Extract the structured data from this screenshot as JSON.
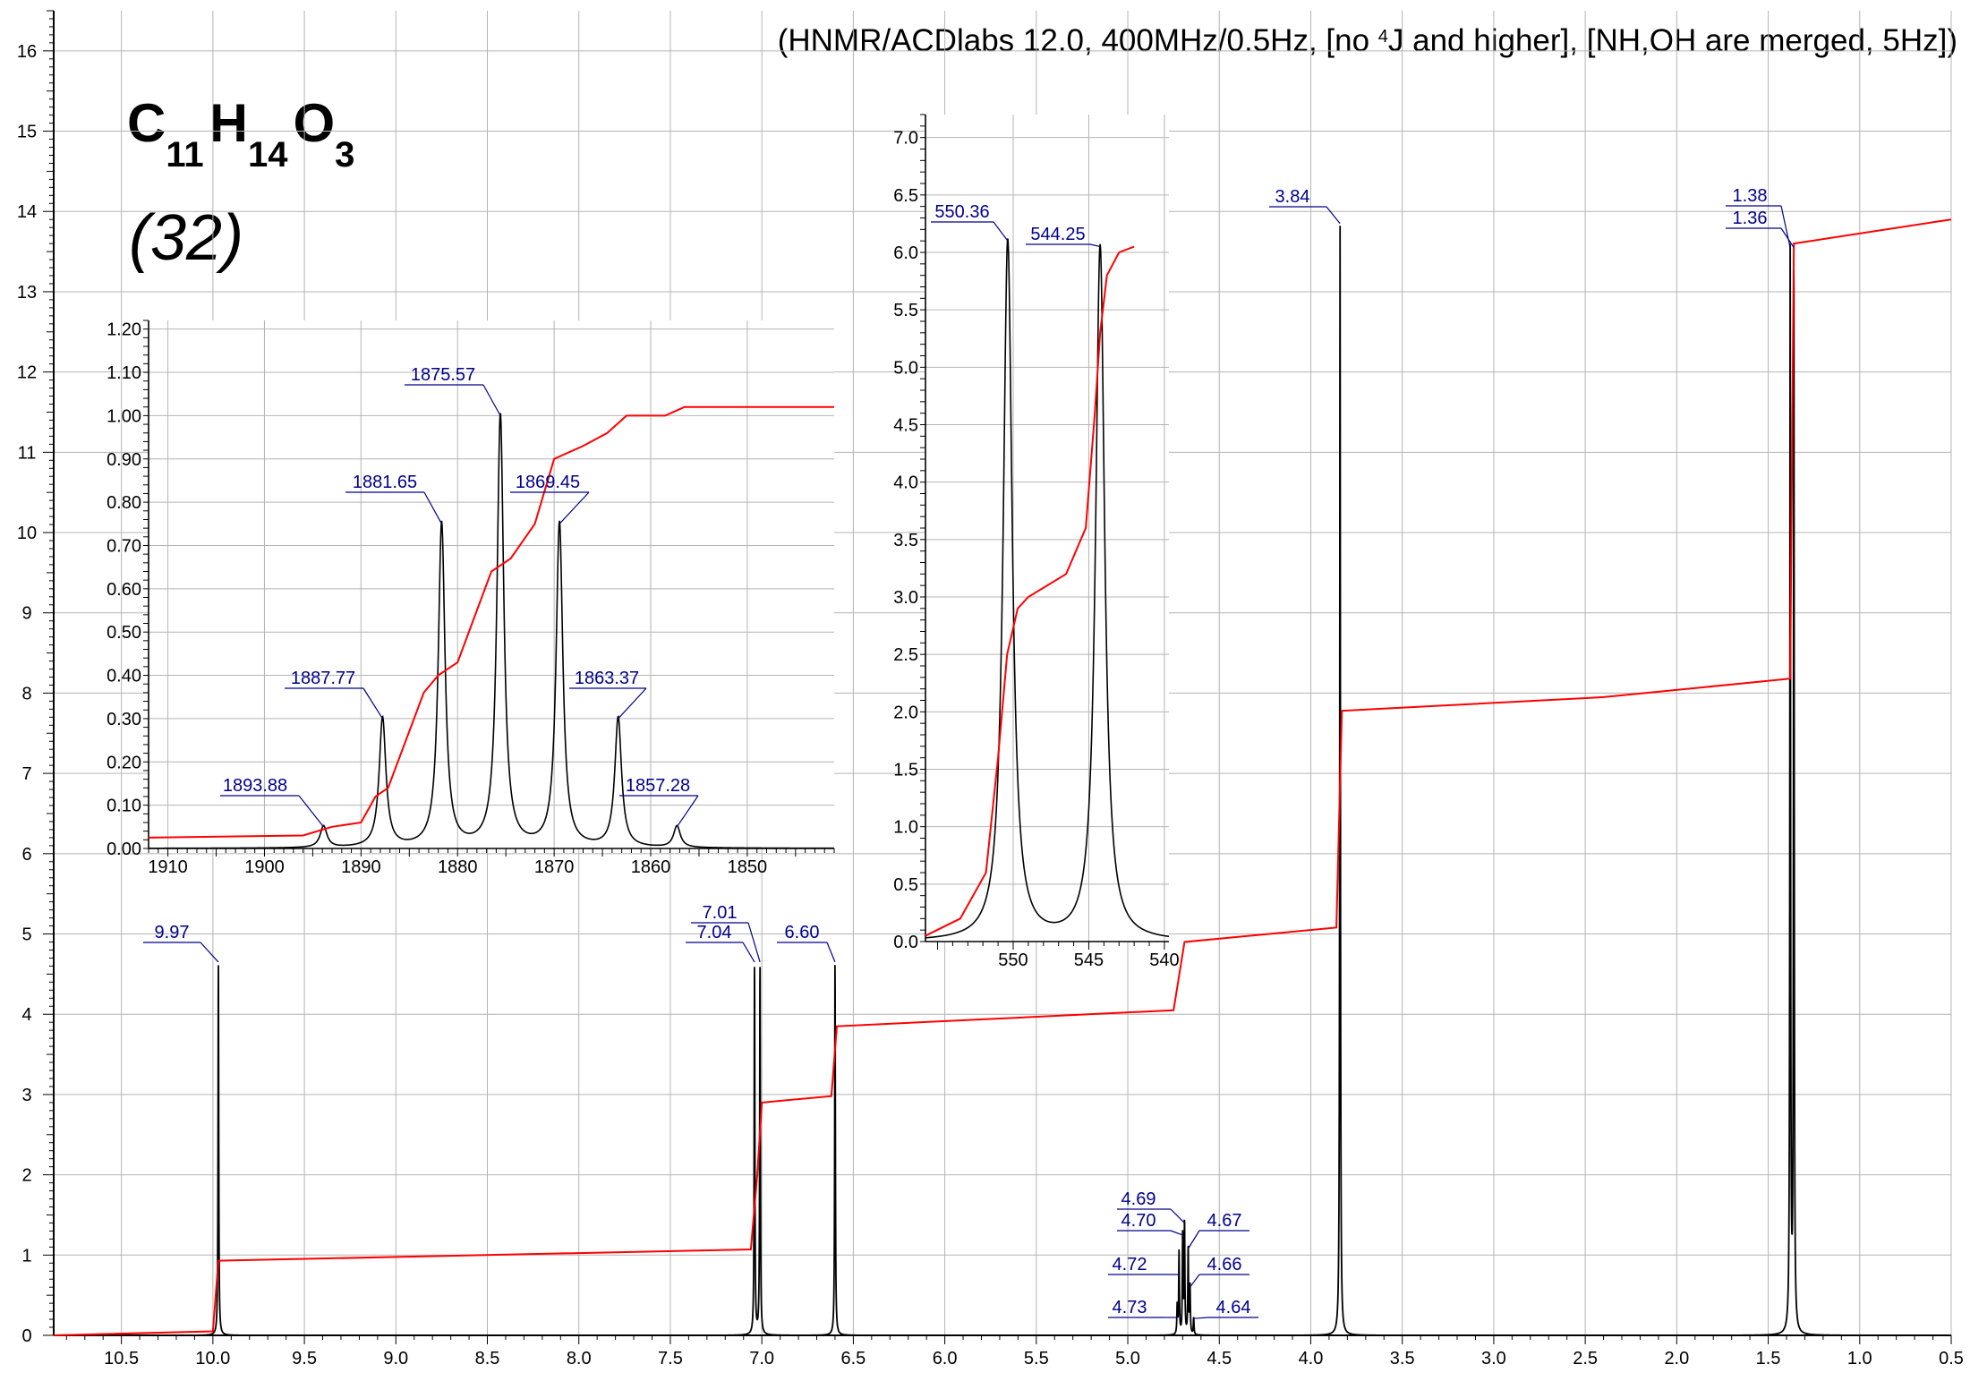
{
  "header": {
    "prefix": "(HNMR/ACDlabs 12.0, 400MHz/0.5Hz, [no ",
    "sup": "4",
    "suffix": "J and higher], [NH,OH are merged, 5Hz])"
  },
  "formula": {
    "c": "C",
    "c_n": "11",
    "h": "H",
    "h_n": "14",
    "o": "O",
    "o_n": "3"
  },
  "compound_label": "(32)",
  "chart_data": [
    {
      "type": "line",
      "name": "main-spectrum",
      "x_unit": "ppm",
      "x_reversed": true,
      "xlim": [
        10.87,
        0.5
      ],
      "ylim": [
        0,
        16.5
      ],
      "x_ticks": [
        "10.5",
        "10.0",
        "9.5",
        "9.0",
        "8.5",
        "8.0",
        "7.5",
        "7.0",
        "6.5",
        "6.0",
        "5.5",
        "5.0",
        "4.5",
        "4.0",
        "3.5",
        "3.0",
        "2.5",
        "2.0",
        "1.5",
        "1.0",
        "0.5"
      ],
      "y_ticks": [
        "0",
        "1",
        "2",
        "3",
        "4",
        "5",
        "6",
        "7",
        "8",
        "9",
        "10",
        "11",
        "12",
        "13",
        "14",
        "15",
        "16"
      ],
      "grid": true,
      "peaks": [
        {
          "x": 9.97,
          "h": 4.65
        },
        {
          "x": 7.04,
          "h": 4.65
        },
        {
          "x": 7.01,
          "h": 4.65
        },
        {
          "x": 6.6,
          "h": 4.65
        },
        {
          "x": 4.73,
          "h": 0.36
        },
        {
          "x": 4.72,
          "h": 1.03
        },
        {
          "x": 4.7,
          "h": 1.25
        },
        {
          "x": 4.69,
          "h": 1.4
        },
        {
          "x": 4.67,
          "h": 1.08
        },
        {
          "x": 4.66,
          "h": 0.6
        },
        {
          "x": 4.64,
          "h": 0.21
        },
        {
          "x": 3.84,
          "h": 13.85
        },
        {
          "x": 1.38,
          "h": 13.55
        },
        {
          "x": 1.36,
          "h": 13.55
        }
      ],
      "peak_labels": [
        {
          "text": "9.97",
          "x": 9.97
        },
        {
          "text": "7.04",
          "x": 7.04
        },
        {
          "text": "7.01",
          "x": 7.01
        },
        {
          "text": "6.60",
          "x": 6.6
        },
        {
          "text": "4.73",
          "x": 4.73
        },
        {
          "text": "4.72",
          "x": 4.72
        },
        {
          "text": "4.70",
          "x": 4.7
        },
        {
          "text": "4.69",
          "x": 4.69
        },
        {
          "text": "4.67",
          "x": 4.67
        },
        {
          "text": "4.66",
          "x": 4.66
        },
        {
          "text": "4.64",
          "x": 4.64
        },
        {
          "text": "3.84",
          "x": 3.84
        },
        {
          "text": "1.38",
          "x": 1.38
        },
        {
          "text": "1.36",
          "x": 1.36
        }
      ],
      "integral": [
        [
          10.87,
          0.0
        ],
        [
          10.0,
          0.05
        ],
        [
          9.97,
          0.93
        ],
        [
          7.06,
          1.07
        ],
        [
          7.025,
          2.0
        ],
        [
          7.0,
          2.9
        ],
        [
          6.62,
          2.98
        ],
        [
          6.59,
          3.85
        ],
        [
          4.75,
          4.05
        ],
        [
          4.69,
          4.9
        ],
        [
          3.86,
          5.08
        ],
        [
          3.83,
          7.78
        ],
        [
          2.4,
          7.95
        ],
        [
          1.38,
          8.18
        ],
        [
          1.36,
          13.6
        ],
        [
          0.5,
          13.9
        ]
      ],
      "colors": {
        "spectrum": "#000000",
        "integral": "#ff0000",
        "label": "#00008b",
        "grid": "#b4b4b4"
      }
    },
    {
      "type": "line",
      "name": "inset-1860hz",
      "x_unit": "Hz",
      "x_reversed": true,
      "xlim": [
        1912,
        1841
      ],
      "ylim": [
        0,
        1.22
      ],
      "x_ticks": [
        "1910",
        "1900",
        "1890",
        "1880",
        "1870",
        "1860",
        "1850"
      ],
      "y_ticks": [
        "0.00",
        "0.10",
        "0.20",
        "0.30",
        "0.40",
        "0.50",
        "0.60",
        "0.70",
        "0.80",
        "0.90",
        "1.00",
        "1.10",
        "1.20"
      ],
      "peaks": [
        {
          "x": 1893.88,
          "h": 0.05
        },
        {
          "x": 1887.77,
          "h": 0.3
        },
        {
          "x": 1881.65,
          "h": 0.75
        },
        {
          "x": 1875.57,
          "h": 1.0
        },
        {
          "x": 1869.45,
          "h": 0.75
        },
        {
          "x": 1863.37,
          "h": 0.3
        },
        {
          "x": 1857.28,
          "h": 0.05
        }
      ],
      "peak_labels": [
        {
          "text": "1893.88",
          "x": 1893.88
        },
        {
          "text": "1887.77",
          "x": 1887.77
        },
        {
          "text": "1881.65",
          "x": 1881.65
        },
        {
          "text": "1875.57",
          "x": 1875.57
        },
        {
          "text": "1869.45",
          "x": 1869.45
        },
        {
          "text": "1863.37",
          "x": 1863.37
        },
        {
          "text": "1857.28",
          "x": 1857.28
        }
      ],
      "integral": [
        [
          1912,
          0.025
        ],
        [
          1896,
          0.03
        ],
        [
          1893,
          0.05
        ],
        [
          1890,
          0.06
        ],
        [
          1888.5,
          0.12
        ],
        [
          1887.2,
          0.14
        ],
        [
          1883.5,
          0.36
        ],
        [
          1882,
          0.4
        ],
        [
          1880,
          0.43
        ],
        [
          1878,
          0.55
        ],
        [
          1876.5,
          0.64
        ],
        [
          1874.5,
          0.67
        ],
        [
          1872,
          0.75
        ],
        [
          1870,
          0.9
        ],
        [
          1867,
          0.93
        ],
        [
          1864.5,
          0.96
        ],
        [
          1862.5,
          1.0
        ],
        [
          1858.5,
          1.0
        ],
        [
          1856.5,
          1.02
        ],
        [
          1841,
          1.02
        ]
      ]
    },
    {
      "type": "line",
      "name": "inset-545hz",
      "x_unit": "Hz",
      "x_reversed": true,
      "xlim": [
        555.8,
        539.7
      ],
      "ylim": [
        0,
        7.2
      ],
      "x_ticks": [
        "550",
        "545",
        "540"
      ],
      "y_ticks": [
        "0.0",
        "0.5",
        "1.0",
        "1.5",
        "2.0",
        "2.5",
        "3.0",
        "3.5",
        "4.0",
        "4.5",
        "5.0",
        "5.5",
        "6.0",
        "6.5",
        "7.0"
      ],
      "peaks": [
        {
          "x": 550.36,
          "h": 6.1
        },
        {
          "x": 544.25,
          "h": 6.05
        }
      ],
      "peak_labels": [
        {
          "text": "550.36",
          "x": 550.36
        },
        {
          "text": "544.25",
          "x": 544.25
        }
      ],
      "integral": [
        [
          555.8,
          0.05
        ],
        [
          553.5,
          0.2
        ],
        [
          551.8,
          0.6
        ],
        [
          551.0,
          1.6
        ],
        [
          550.4,
          2.5
        ],
        [
          549.7,
          2.9
        ],
        [
          549.0,
          3.0
        ],
        [
          546.5,
          3.2
        ],
        [
          545.2,
          3.6
        ],
        [
          544.6,
          4.6
        ],
        [
          544.25,
          5.3
        ],
        [
          543.8,
          5.8
        ],
        [
          543.0,
          6.0
        ],
        [
          542.0,
          6.05
        ]
      ]
    }
  ]
}
